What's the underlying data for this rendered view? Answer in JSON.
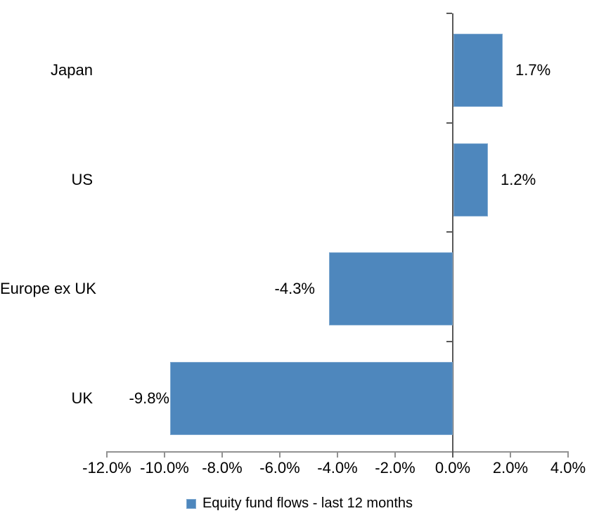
{
  "chart_data": {
    "type": "bar",
    "orientation": "horizontal",
    "title": "",
    "categories": [
      "Japan",
      "US",
      "Europe ex UK",
      "UK"
    ],
    "series": [
      {
        "name": "Equity fund flows - last 12 months",
        "values": [
          1.7,
          1.2,
          -4.3,
          -9.8
        ],
        "data_labels": [
          "1.7%",
          "1.2%",
          "-4.3%",
          "-9.8%"
        ]
      }
    ],
    "xlabel": "",
    "ylabel": "",
    "xlim": [
      -12,
      4
    ],
    "x_tick_values": [
      -12,
      -10,
      -8,
      -6,
      -4,
      -2,
      0,
      2,
      4
    ],
    "x_tick_labels": [
      "-12.0%",
      "-10.0%",
      "-8.0%",
      "-6.0%",
      "-4.0%",
      "-2.0%",
      "0.0%",
      "2.0%",
      "4.0%"
    ],
    "grid": false,
    "legend_position": "bottom",
    "legend": [
      {
        "label": "Equity fund flows - last 12 months",
        "color": "#4E87BD"
      }
    ],
    "colors": {
      "bar_fill": "#4E87BD",
      "bar_border": "#7FA9D0",
      "x_axis": "#929292",
      "zero_line": "#595959",
      "text": "#000000"
    }
  }
}
